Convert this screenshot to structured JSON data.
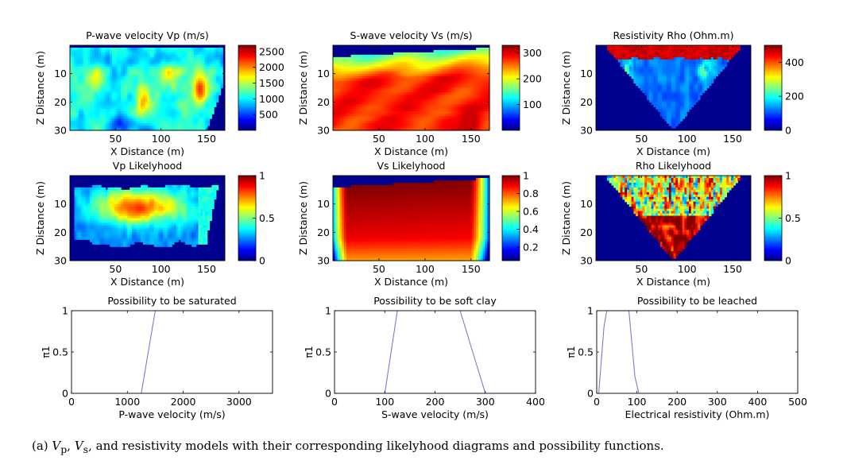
{
  "caption": {
    "prefix": "(a) ",
    "v1_base": "V",
    "v1_sub": "p",
    "sep": ", ",
    "v2_base": "V",
    "v2_sub": "s",
    "rest": ", and resistivity models with their corresponding likelyhood diagrams and possibility functions."
  },
  "chart_data": [
    {
      "id": "vp_model",
      "type": "heatmap",
      "title": "P-wave velocity Vp (m/s)",
      "xlabel": "X Distance (m)",
      "ylabel": "Z Distance (m)",
      "xticks": [
        50,
        100,
        150
      ],
      "yticks": [
        10,
        20,
        30
      ],
      "xlim": [
        0,
        170
      ],
      "ylim": [
        0,
        30
      ],
      "y_reversed": true,
      "colorbar": {
        "ticks": [
          500,
          1000,
          1500,
          2000,
          2500
        ],
        "range": [
          0,
          2700
        ]
      },
      "colormap": "jet"
    },
    {
      "id": "vs_model",
      "type": "heatmap",
      "title": "S-wave velocity Vs (m/s)",
      "xlabel": "X Distance (m)",
      "ylabel": "Z Distance (m)",
      "xticks": [
        50,
        100,
        150
      ],
      "yticks": [
        10,
        20,
        30
      ],
      "xlim": [
        0,
        170
      ],
      "ylim": [
        0,
        30
      ],
      "y_reversed": true,
      "colorbar": {
        "ticks": [
          100,
          200,
          300
        ],
        "range": [
          0,
          330
        ]
      },
      "colormap": "jet"
    },
    {
      "id": "rho_model",
      "type": "heatmap",
      "title": "Resistivity Rho (Ohm.m)",
      "xlabel": "X Distance (m)",
      "ylabel": "Z Distance (m)",
      "xticks": [
        50,
        100,
        150
      ],
      "yticks": [
        10,
        20,
        30
      ],
      "xlim": [
        0,
        170
      ],
      "ylim": [
        0,
        30
      ],
      "y_reversed": true,
      "colorbar": {
        "ticks": [
          0,
          200,
          400
        ],
        "range": [
          0,
          500
        ]
      },
      "colormap": "jet"
    },
    {
      "id": "vp_likelihood",
      "type": "heatmap",
      "title": "Vp Likelyhood",
      "xlabel": "X Distance (m)",
      "ylabel": "Z Distance (m)",
      "xticks": [
        50,
        100,
        150
      ],
      "yticks": [
        10,
        20,
        30
      ],
      "xlim": [
        0,
        170
      ],
      "ylim": [
        0,
        30
      ],
      "y_reversed": true,
      "colorbar": {
        "ticks": [
          0,
          0.5,
          1
        ],
        "range": [
          0,
          1
        ]
      },
      "colormap": "jet"
    },
    {
      "id": "vs_likelihood",
      "type": "heatmap",
      "title": "Vs Likelyhood",
      "xlabel": "X Distance (m)",
      "ylabel": "Z Distance (m)",
      "xticks": [
        50,
        100,
        150
      ],
      "yticks": [
        10,
        20,
        30
      ],
      "xlim": [
        0,
        170
      ],
      "ylim": [
        0,
        30
      ],
      "y_reversed": true,
      "colorbar": {
        "ticks": [
          0.2,
          0.4,
          0.6,
          0.8,
          1
        ],
        "range": [
          0.05,
          1
        ]
      },
      "colormap": "jet"
    },
    {
      "id": "rho_likelihood",
      "type": "heatmap",
      "title": "Rho Likelyhood",
      "xlabel": "X Distance (m)",
      "ylabel": "Z Distance (m)",
      "xticks": [
        50,
        100,
        150
      ],
      "yticks": [
        10,
        20,
        30
      ],
      "xlim": [
        0,
        170
      ],
      "ylim": [
        0,
        30
      ],
      "y_reversed": true,
      "colorbar": {
        "ticks": [
          0,
          0.5,
          1
        ],
        "range": [
          0,
          1
        ]
      },
      "colormap": "jet"
    },
    {
      "id": "poss_saturated",
      "type": "line",
      "title": "Possibility to be saturated",
      "xlabel": "P-wave velocity (m/s)",
      "ylabel": "π1",
      "xticks": [
        0,
        1000,
        2000,
        3000
      ],
      "yticks": [
        0,
        0.5,
        1
      ],
      "xlim": [
        0,
        3600
      ],
      "ylim": [
        0,
        1
      ],
      "line_color": "#7b7bd0",
      "series": [
        {
          "x": [
            1250,
            1500
          ],
          "y": [
            0,
            1
          ]
        }
      ]
    },
    {
      "id": "poss_soft_clay",
      "type": "line",
      "title": "Possibility to be soft clay",
      "xlabel": "S-wave velocity (m/s)",
      "ylabel": "π1",
      "xticks": [
        0,
        100,
        200,
        300,
        400
      ],
      "yticks": [
        0,
        0.5,
        1
      ],
      "xlim": [
        0,
        400
      ],
      "ylim": [
        0,
        1
      ],
      "line_color": "#7b7bd0",
      "series": [
        {
          "x": [
            100,
            125
          ],
          "y": [
            0,
            1
          ]
        },
        {
          "x": [
            250,
            300
          ],
          "y": [
            1,
            0
          ]
        }
      ]
    },
    {
      "id": "poss_leached",
      "type": "line",
      "title": "Possibility to be leached",
      "xlabel": "Electrical resistivity (Ohm.m)",
      "ylabel": "π1",
      "xticks": [
        0,
        100,
        200,
        300,
        400,
        500
      ],
      "yticks": [
        0,
        0.5,
        1
      ],
      "xlim": [
        0,
        500
      ],
      "ylim": [
        0,
        1
      ],
      "line_color": "#7b7bd0",
      "series": [
        {
          "x": [
            5,
            18,
            25,
            80,
            95,
            105
          ],
          "y": [
            0,
            0.8,
            1,
            1,
            0.2,
            0
          ]
        }
      ]
    }
  ]
}
